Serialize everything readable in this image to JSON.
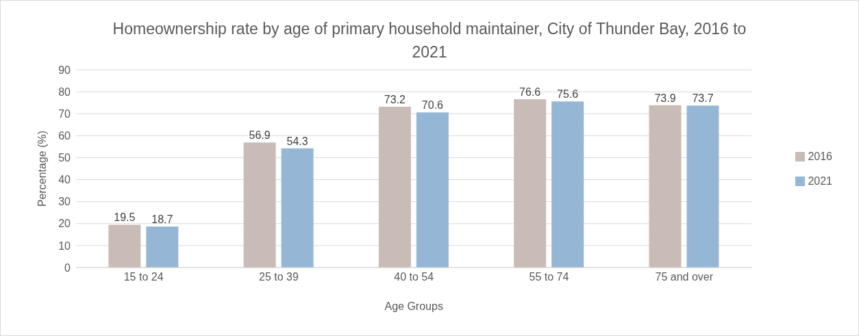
{
  "chart_data": {
    "type": "bar",
    "title": "Homeownership rate by age of primary household maintainer, City of Thunder Bay, 2016 to 2021",
    "xlabel": "Age Groups",
    "ylabel": "Percentage (%)",
    "categories": [
      "15 to 24",
      "25 to 39",
      "40 to 54",
      "55 to 74",
      "75 and over"
    ],
    "series": [
      {
        "name": "2016",
        "color": "#c9bcb6",
        "values": [
          19.5,
          56.9,
          73.2,
          76.6,
          73.9
        ]
      },
      {
        "name": "2021",
        "color": "#95b7d5",
        "values": [
          18.7,
          54.3,
          70.6,
          75.6,
          73.7
        ]
      }
    ],
    "ylim": [
      0,
      90
    ],
    "yticks": [
      0,
      10,
      20,
      30,
      40,
      50,
      60,
      70,
      80,
      90
    ],
    "grid": "y",
    "legend": "right",
    "data_labels": true
  }
}
